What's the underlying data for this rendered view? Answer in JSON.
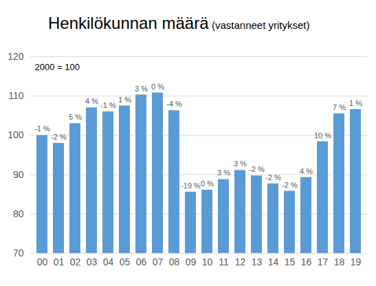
{
  "chart_data": {
    "type": "bar",
    "title": "Henkilökunnan määrä",
    "subtitle": "(vastanneet yritykset)",
    "annotations": [
      "2000 = 100"
    ],
    "categories": [
      "00",
      "01",
      "02",
      "03",
      "04",
      "05",
      "06",
      "07",
      "08",
      "09",
      "10",
      "11",
      "12",
      "13",
      "14",
      "15",
      "16",
      "17",
      "18",
      "19"
    ],
    "values": [
      100,
      98,
      103,
      107,
      106,
      107.5,
      110.3,
      110.8,
      106.3,
      85.6,
      86.1,
      88.8,
      91.1,
      89.7,
      87.7,
      85.8,
      89.3,
      98.4,
      105.5,
      106.6
    ],
    "bar_labels": [
      "-1 %",
      "-2 %",
      "5 %",
      "4 %",
      "-1 %",
      "1 %",
      "3 %",
      "0 %",
      "-4 %",
      "-19 %",
      "0 %",
      "3 %",
      "3 %",
      "-2 %",
      "-2 %",
      "-2 %",
      "4 %",
      "10 %",
      "7 %",
      "1 %"
    ],
    "color": "#5b9bd5",
    "ylim": [
      70,
      120
    ],
    "yticks": [
      70,
      80,
      90,
      100,
      110,
      120
    ],
    "grid": true
  }
}
